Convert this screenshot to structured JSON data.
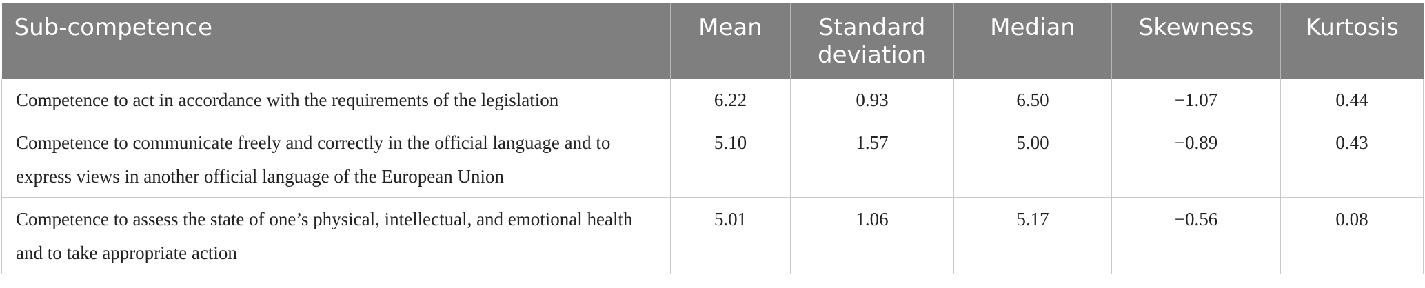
{
  "table": {
    "headers": [
      "Sub-competence",
      "Mean",
      "Standard deviation",
      "Median",
      "Skewness",
      "Kurtosis"
    ],
    "rows": [
      {
        "subcompetence": "Competence to act in accordance with the requirements of the legislation",
        "mean": "6.22",
        "sd": "0.93",
        "median": "6.50",
        "skewness": "−1.07",
        "kurtosis": "0.44"
      },
      {
        "subcompetence": "Competence to communicate freely and correctly in the official language and to express views in another official language of the European Union",
        "mean": "5.10",
        "sd": "1.57",
        "median": "5.00",
        "skewness": "−0.89",
        "kurtosis": "0.43"
      },
      {
        "subcompetence": "Competence to assess the state of one’s physical, intellectual, and emotional health and to take appropriate action",
        "mean": "5.01",
        "sd": "1.06",
        "median": "5.17",
        "skewness": "−0.56",
        "kurtosis": "0.08"
      }
    ]
  }
}
